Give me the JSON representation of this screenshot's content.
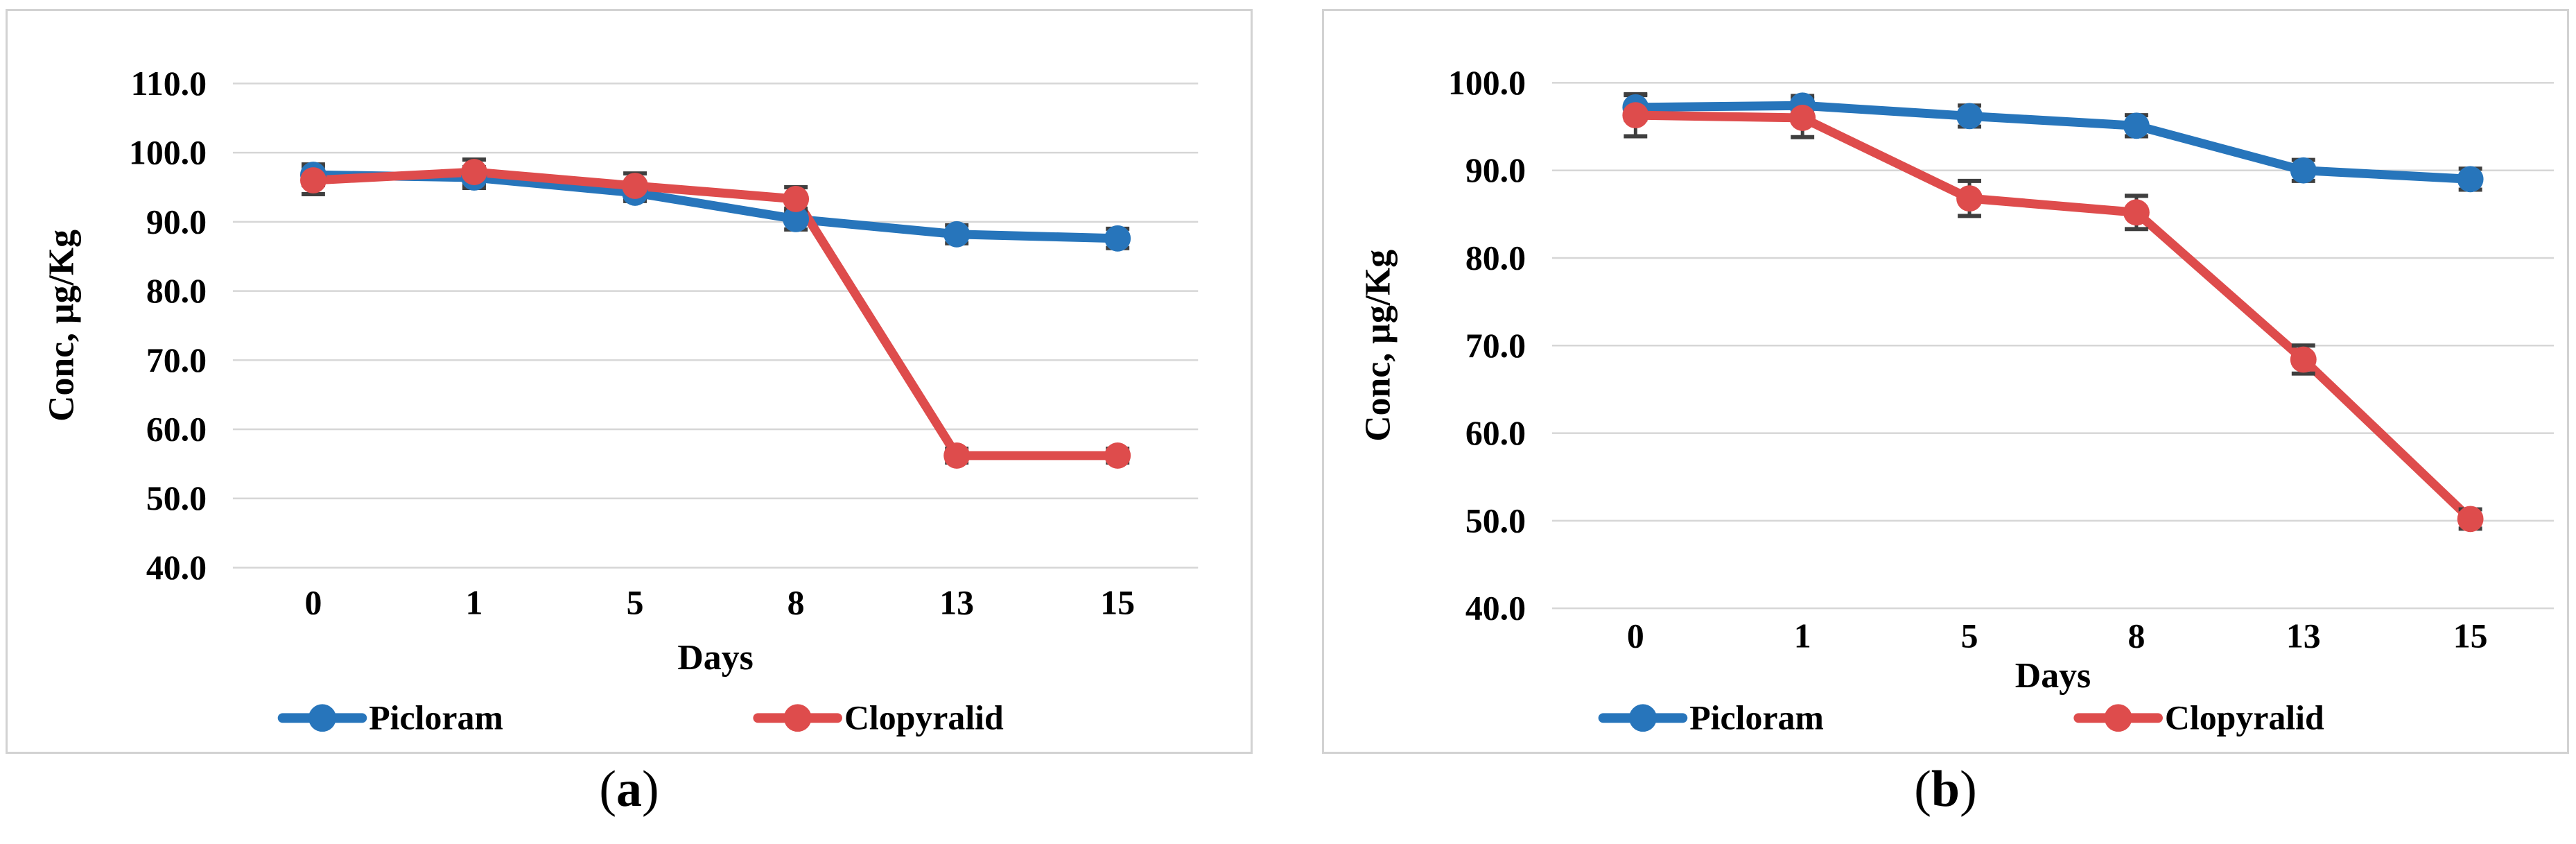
{
  "captions": {
    "open": "(",
    "close": ")"
  },
  "colors": {
    "picloram_blue": "#2775BB",
    "clopyralid_red": "#DE4C4C",
    "gridline": "#d6d6d6",
    "panel_border": "#d2d2d2",
    "error_bar": "#3f3f3f",
    "text": "#000000",
    "background": "#ffffff"
  },
  "chart_data": [
    {
      "id": "a",
      "caption_letter": "a",
      "type": "line",
      "title": "",
      "xlabel": "Days",
      "ylabel": "Conc, µg/Kg",
      "categories": [
        "0",
        "1",
        "5",
        "8",
        "13",
        "15"
      ],
      "ylim": [
        40,
        110
      ],
      "yticks": [
        40,
        50,
        60,
        70,
        80,
        90,
        100,
        110
      ],
      "ytick_labels": [
        "40.0",
        "50.0",
        "60.0",
        "70.0",
        "80.0",
        "90.0",
        "100.0",
        "110.0"
      ],
      "grid": true,
      "legend_position": "bottom",
      "series": [
        {
          "name": "Picloram",
          "color": "#2775BB",
          "values": [
            96.8,
            96.4,
            94.2,
            90.4,
            88.2,
            87.6
          ],
          "errors": [
            1.5,
            1.5,
            1.2,
            1.5,
            1.3,
            1.4
          ]
        },
        {
          "name": "Clopyralid",
          "color": "#DE4C4C",
          "values": [
            96.0,
            97.2,
            95.2,
            93.3,
            56.2,
            56.2
          ],
          "errors": [
            2.0,
            1.8,
            1.8,
            1.7,
            1.0,
            1.0
          ]
        }
      ]
    },
    {
      "id": "b",
      "caption_letter": "b",
      "type": "line",
      "title": "",
      "xlabel": "Days",
      "ylabel": "Conc, µg/Kg",
      "categories": [
        "0",
        "1",
        "5",
        "8",
        "13",
        "15"
      ],
      "ylim": [
        40,
        100
      ],
      "yticks": [
        40,
        50,
        60,
        70,
        80,
        90,
        100
      ],
      "ytick_labels": [
        "40.0",
        "50.0",
        "60.0",
        "70.0",
        "80.0",
        "90.0",
        "100.0"
      ],
      "grid": true,
      "legend_position": "bottom",
      "series": [
        {
          "name": "Picloram",
          "color": "#2775BB",
          "values": [
            97.2,
            97.4,
            96.2,
            95.1,
            90.0,
            89.0
          ],
          "errors": [
            1.4,
            1.1,
            1.2,
            1.2,
            1.2,
            1.2
          ]
        },
        {
          "name": "Clopyralid",
          "color": "#DE4C4C",
          "values": [
            96.3,
            96.0,
            86.8,
            85.2,
            68.4,
            50.2
          ],
          "errors": [
            2.4,
            2.2,
            2.0,
            1.9,
            1.6,
            1.1
          ]
        }
      ]
    }
  ]
}
